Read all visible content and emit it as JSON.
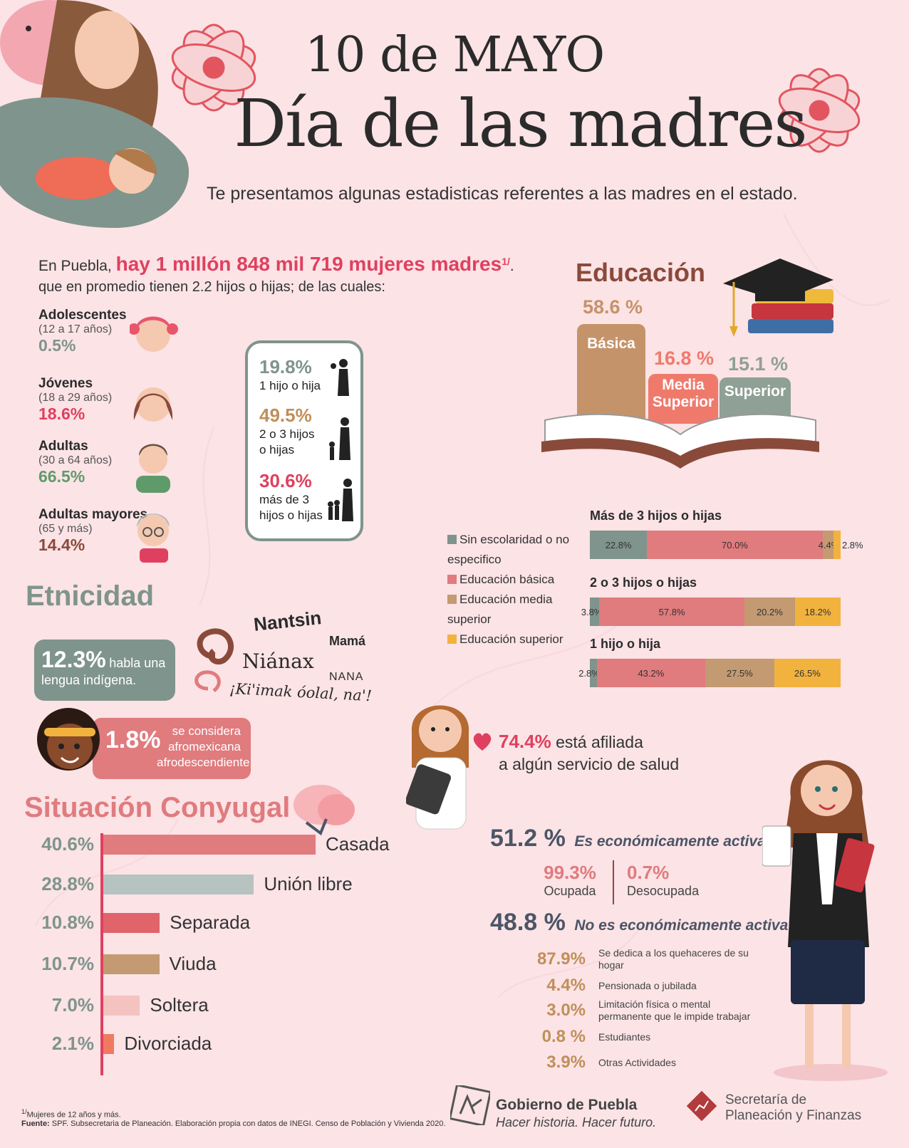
{
  "header": {
    "date": "10 de MAYO",
    "title": "Día de las madres",
    "subtitle": "Te presentamos algunas estadisticas referentes a las madres en el estado."
  },
  "intro": {
    "prefix": "En Puebla,",
    "highlight": "hay 1 millón 848 mil 719 mujeres madres",
    "footnote_mark": "1/",
    "line2": "que en promedio tienen 2.2 hijos o hijas; de las cuales:"
  },
  "age_groups": [
    {
      "label": "Adolescentes",
      "range": "(12 a 17 años)",
      "pct": "0.5%",
      "color": "#7f948c"
    },
    {
      "label": "Jóvenes",
      "range": "(18 a 29 años)",
      "pct": "18.6%",
      "color": "#e0405f"
    },
    {
      "label": "Adultas",
      "range": "(30 a 64 años)",
      "pct": "66.5%",
      "color": "#5f9b6a"
    },
    {
      "label": "Adultas mayores",
      "range": "(65 y más)",
      "pct": "14.4%",
      "color": "#8a4a3a"
    }
  ],
  "children": [
    {
      "pct": "19.8%",
      "text": "1 hijo o hija",
      "color": "#7f948c"
    },
    {
      "pct": "49.5%",
      "text": "2 o 3 hijos o hijas",
      "color": "#c08f5a"
    },
    {
      "pct": "30.6%",
      "text": "más de 3 hijos o hijas",
      "color": "#e0405f"
    }
  ],
  "education": {
    "title": "Educación",
    "levels": [
      {
        "pct": "58.6 %",
        "label": "Básica",
        "value": 58.6,
        "color": "#c5936a",
        "pct_color": "#c5936a"
      },
      {
        "pct": "16.8 %",
        "label": "Media Superior",
        "value": 16.8,
        "color": "#ef7a6c",
        "pct_color": "#ef7a6c"
      },
      {
        "pct": "15.1 %",
        "label": "Superior",
        "value": 15.1,
        "color": "#8fa096",
        "pct_color": "#8fa096"
      }
    ],
    "legend": [
      {
        "label": "Sin escolaridad o no especifico",
        "color": "#7f948c"
      },
      {
        "label": "Educación básica",
        "color": "#e07b7e"
      },
      {
        "label": "Educación media superior",
        "color": "#c39a72"
      },
      {
        "label": "Educación superior",
        "color": "#f2b23e"
      }
    ],
    "breakdown": [
      {
        "title": "Más de 3 hijos o hijas",
        "values": [
          22.8,
          70.0,
          4.4,
          2.8
        ],
        "labels": [
          "22.8%",
          "70.0%",
          "4.4%",
          "2.8%"
        ]
      },
      {
        "title": "2 o 3 hijos o hijas",
        "values": [
          3.8,
          57.8,
          20.2,
          18.2
        ],
        "labels": [
          "3.8%",
          "57.8%",
          "20.2%",
          "18.2%"
        ]
      },
      {
        "title": "1 hijo o hija",
        "values": [
          2.8,
          43.2,
          27.5,
          26.5
        ],
        "labels": [
          "2.8%",
          "43.2%",
          "27.5%",
          "26.5%"
        ]
      }
    ]
  },
  "ethnicity": {
    "title": "Etnicidad",
    "indigenous_pct": "12.3%",
    "indigenous_text": "habla una lengua indígena.",
    "afro_pct": "1.8%",
    "afro_text": "se considera afromexicana afrodescendiente",
    "words": [
      "Nantsin",
      "Mamá",
      "Niánax",
      "NANA",
      "¡Ki'imak óolal, na'!"
    ]
  },
  "health": {
    "pct": "74.4%",
    "text1": "está afiliada",
    "text2": "a algún servicio de salud"
  },
  "marital": {
    "title": "Situación Conyugal",
    "items": [
      {
        "pct": "40.6%",
        "label": "Casada",
        "value": 40.6,
        "color": "#e07b7e"
      },
      {
        "pct": "28.8%",
        "label": "Unión libre",
        "value": 28.8,
        "color": "#b7c3c0"
      },
      {
        "pct": "10.8%",
        "label": "Separada",
        "value": 10.8,
        "color": "#e0646a"
      },
      {
        "pct": "10.7%",
        "label": "Viuda",
        "value": 10.7,
        "color": "#c39a72"
      },
      {
        "pct": "7.0%",
        "label": "Soltera",
        "value": 7.0,
        "color": "#f4c3bf"
      },
      {
        "pct": "2.1%",
        "label": "Divorciada",
        "value": 2.1,
        "color": "#f07a60"
      }
    ]
  },
  "economy": {
    "active_pct": "51.2 %",
    "active_text": "Es económicamente activa",
    "employed_pct": "99.3%",
    "employed_text": "Ocupada",
    "unemployed_pct": "0.7%",
    "unemployed_text": "Desocupada",
    "inactive_pct": "48.8 %",
    "inactive_text": "No es económicamente activa",
    "inactive_items": [
      {
        "pct": "87.9%",
        "text": "Se dedica a los quehaceres de su hogar"
      },
      {
        "pct": "4.4%",
        "text": "Pensionada o jubilada"
      },
      {
        "pct": "3.0%",
        "text": "Limitación física o mental permanente que le impide trabajar"
      },
      {
        "pct": "0.8 %",
        "text": "Estudiantes"
      },
      {
        "pct": "3.9%",
        "text": "Otras Actividades"
      }
    ]
  },
  "footer": {
    "note": "Mujeres de 12 años y más.",
    "note_mark": "1/",
    "source_label": "Fuente:",
    "source": "SPF. Subsecretaria de Planeación. Elaboración propia con datos de INEGI. Censo de Población y Vivienda 2020.",
    "gov_name": "Gobierno de Puebla",
    "gov_slogan": "Hacer historia. Hacer futuro.",
    "sec_line1": "Secretaría de",
    "sec_line2": "Planeación y Finanzas"
  }
}
